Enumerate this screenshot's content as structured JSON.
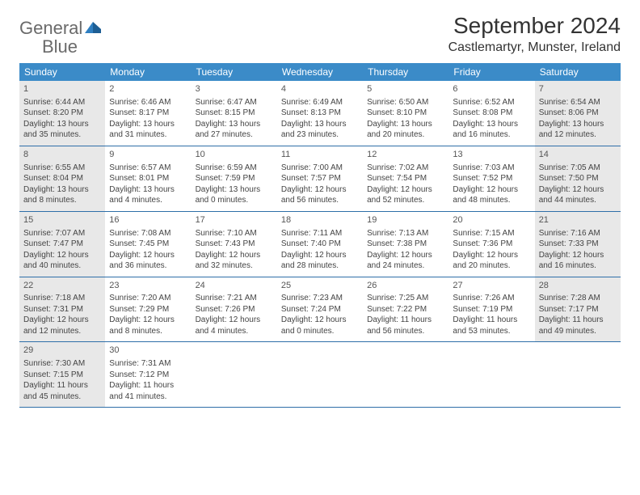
{
  "logo": {
    "text_gray": "General",
    "text_blue": "Blue"
  },
  "title": "September 2024",
  "location": "Castlemartyr, Munster, Ireland",
  "colors": {
    "header_bg": "#3b8bc8",
    "header_text": "#ffffff",
    "row_border": "#2f6fa8",
    "shaded_bg": "#e8e8e8",
    "body_text": "#444444",
    "title_text": "#333333",
    "logo_gray": "#6a6a6a",
    "logo_blue": "#2f7fc1",
    "page_bg": "#ffffff"
  },
  "day_headers": [
    "Sunday",
    "Monday",
    "Tuesday",
    "Wednesday",
    "Thursday",
    "Friday",
    "Saturday"
  ],
  "weeks": [
    [
      {
        "n": "1",
        "shaded": true,
        "sr": "Sunrise: 6:44 AM",
        "ss": "Sunset: 8:20 PM",
        "d1": "Daylight: 13 hours",
        "d2": "and 35 minutes."
      },
      {
        "n": "2",
        "shaded": false,
        "sr": "Sunrise: 6:46 AM",
        "ss": "Sunset: 8:17 PM",
        "d1": "Daylight: 13 hours",
        "d2": "and 31 minutes."
      },
      {
        "n": "3",
        "shaded": false,
        "sr": "Sunrise: 6:47 AM",
        "ss": "Sunset: 8:15 PM",
        "d1": "Daylight: 13 hours",
        "d2": "and 27 minutes."
      },
      {
        "n": "4",
        "shaded": false,
        "sr": "Sunrise: 6:49 AM",
        "ss": "Sunset: 8:13 PM",
        "d1": "Daylight: 13 hours",
        "d2": "and 23 minutes."
      },
      {
        "n": "5",
        "shaded": false,
        "sr": "Sunrise: 6:50 AM",
        "ss": "Sunset: 8:10 PM",
        "d1": "Daylight: 13 hours",
        "d2": "and 20 minutes."
      },
      {
        "n": "6",
        "shaded": false,
        "sr": "Sunrise: 6:52 AM",
        "ss": "Sunset: 8:08 PM",
        "d1": "Daylight: 13 hours",
        "d2": "and 16 minutes."
      },
      {
        "n": "7",
        "shaded": true,
        "sr": "Sunrise: 6:54 AM",
        "ss": "Sunset: 8:06 PM",
        "d1": "Daylight: 13 hours",
        "d2": "and 12 minutes."
      }
    ],
    [
      {
        "n": "8",
        "shaded": true,
        "sr": "Sunrise: 6:55 AM",
        "ss": "Sunset: 8:04 PM",
        "d1": "Daylight: 13 hours",
        "d2": "and 8 minutes."
      },
      {
        "n": "9",
        "shaded": false,
        "sr": "Sunrise: 6:57 AM",
        "ss": "Sunset: 8:01 PM",
        "d1": "Daylight: 13 hours",
        "d2": "and 4 minutes."
      },
      {
        "n": "10",
        "shaded": false,
        "sr": "Sunrise: 6:59 AM",
        "ss": "Sunset: 7:59 PM",
        "d1": "Daylight: 13 hours",
        "d2": "and 0 minutes."
      },
      {
        "n": "11",
        "shaded": false,
        "sr": "Sunrise: 7:00 AM",
        "ss": "Sunset: 7:57 PM",
        "d1": "Daylight: 12 hours",
        "d2": "and 56 minutes."
      },
      {
        "n": "12",
        "shaded": false,
        "sr": "Sunrise: 7:02 AM",
        "ss": "Sunset: 7:54 PM",
        "d1": "Daylight: 12 hours",
        "d2": "and 52 minutes."
      },
      {
        "n": "13",
        "shaded": false,
        "sr": "Sunrise: 7:03 AM",
        "ss": "Sunset: 7:52 PM",
        "d1": "Daylight: 12 hours",
        "d2": "and 48 minutes."
      },
      {
        "n": "14",
        "shaded": true,
        "sr": "Sunrise: 7:05 AM",
        "ss": "Sunset: 7:50 PM",
        "d1": "Daylight: 12 hours",
        "d2": "and 44 minutes."
      }
    ],
    [
      {
        "n": "15",
        "shaded": true,
        "sr": "Sunrise: 7:07 AM",
        "ss": "Sunset: 7:47 PM",
        "d1": "Daylight: 12 hours",
        "d2": "and 40 minutes."
      },
      {
        "n": "16",
        "shaded": false,
        "sr": "Sunrise: 7:08 AM",
        "ss": "Sunset: 7:45 PM",
        "d1": "Daylight: 12 hours",
        "d2": "and 36 minutes."
      },
      {
        "n": "17",
        "shaded": false,
        "sr": "Sunrise: 7:10 AM",
        "ss": "Sunset: 7:43 PM",
        "d1": "Daylight: 12 hours",
        "d2": "and 32 minutes."
      },
      {
        "n": "18",
        "shaded": false,
        "sr": "Sunrise: 7:11 AM",
        "ss": "Sunset: 7:40 PM",
        "d1": "Daylight: 12 hours",
        "d2": "and 28 minutes."
      },
      {
        "n": "19",
        "shaded": false,
        "sr": "Sunrise: 7:13 AM",
        "ss": "Sunset: 7:38 PM",
        "d1": "Daylight: 12 hours",
        "d2": "and 24 minutes."
      },
      {
        "n": "20",
        "shaded": false,
        "sr": "Sunrise: 7:15 AM",
        "ss": "Sunset: 7:36 PM",
        "d1": "Daylight: 12 hours",
        "d2": "and 20 minutes."
      },
      {
        "n": "21",
        "shaded": true,
        "sr": "Sunrise: 7:16 AM",
        "ss": "Sunset: 7:33 PM",
        "d1": "Daylight: 12 hours",
        "d2": "and 16 minutes."
      }
    ],
    [
      {
        "n": "22",
        "shaded": true,
        "sr": "Sunrise: 7:18 AM",
        "ss": "Sunset: 7:31 PM",
        "d1": "Daylight: 12 hours",
        "d2": "and 12 minutes."
      },
      {
        "n": "23",
        "shaded": false,
        "sr": "Sunrise: 7:20 AM",
        "ss": "Sunset: 7:29 PM",
        "d1": "Daylight: 12 hours",
        "d2": "and 8 minutes."
      },
      {
        "n": "24",
        "shaded": false,
        "sr": "Sunrise: 7:21 AM",
        "ss": "Sunset: 7:26 PM",
        "d1": "Daylight: 12 hours",
        "d2": "and 4 minutes."
      },
      {
        "n": "25",
        "shaded": false,
        "sr": "Sunrise: 7:23 AM",
        "ss": "Sunset: 7:24 PM",
        "d1": "Daylight: 12 hours",
        "d2": "and 0 minutes."
      },
      {
        "n": "26",
        "shaded": false,
        "sr": "Sunrise: 7:25 AM",
        "ss": "Sunset: 7:22 PM",
        "d1": "Daylight: 11 hours",
        "d2": "and 56 minutes."
      },
      {
        "n": "27",
        "shaded": false,
        "sr": "Sunrise: 7:26 AM",
        "ss": "Sunset: 7:19 PM",
        "d1": "Daylight: 11 hours",
        "d2": "and 53 minutes."
      },
      {
        "n": "28",
        "shaded": true,
        "sr": "Sunrise: 7:28 AM",
        "ss": "Sunset: 7:17 PM",
        "d1": "Daylight: 11 hours",
        "d2": "and 49 minutes."
      }
    ],
    [
      {
        "n": "29",
        "shaded": true,
        "sr": "Sunrise: 7:30 AM",
        "ss": "Sunset: 7:15 PM",
        "d1": "Daylight: 11 hours",
        "d2": "and 45 minutes."
      },
      {
        "n": "30",
        "shaded": false,
        "sr": "Sunrise: 7:31 AM",
        "ss": "Sunset: 7:12 PM",
        "d1": "Daylight: 11 hours",
        "d2": "and 41 minutes."
      },
      {
        "n": "",
        "shaded": false
      },
      {
        "n": "",
        "shaded": false
      },
      {
        "n": "",
        "shaded": false
      },
      {
        "n": "",
        "shaded": false
      },
      {
        "n": "",
        "shaded": false
      }
    ]
  ]
}
